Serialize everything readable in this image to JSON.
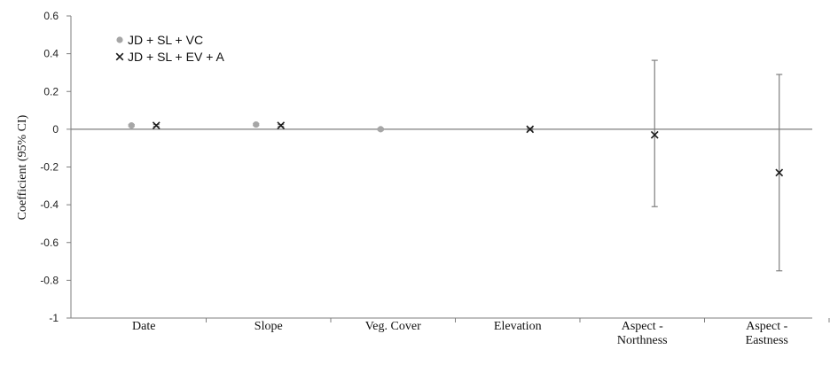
{
  "chart_data": {
    "type": "scatter",
    "ylabel": "Coefficient (95% CI)",
    "xlabel": "",
    "ylim": [
      -1,
      0.6
    ],
    "yticks": [
      0.6,
      0.4,
      0.2,
      0,
      -0.2,
      -0.4,
      -0.6,
      -0.8,
      -1
    ],
    "ytick_labels": [
      "0.6",
      "0.4",
      "0.2",
      "0",
      "-0.2",
      "-0.4",
      "-0.6",
      "-0.8",
      "-1"
    ],
    "categories": [
      [
        "Date"
      ],
      [
        "Slope"
      ],
      [
        "Veg. Cover"
      ],
      [
        "Elevation"
      ],
      [
        "Aspect -",
        "Northness"
      ],
      [
        "Aspect -",
        "Eastness"
      ]
    ],
    "legend_position": "top-left",
    "series": [
      {
        "name": "JD + SL + VC",
        "marker": "circle",
        "color": "#a6a6a6",
        "values": [
          0.02,
          0.025,
          0.0,
          null,
          null,
          null
        ],
        "ci_low": [
          0.015,
          0.02,
          -0.005,
          null,
          null,
          null
        ],
        "ci_high": [
          0.025,
          0.03,
          0.005,
          null,
          null,
          null
        ]
      },
      {
        "name": "JD + SL + EV + A",
        "marker": "x",
        "color": "#1a1a1a",
        "values": [
          0.02,
          0.02,
          null,
          0.0,
          -0.03,
          -0.23
        ],
        "ci_low": [
          0.015,
          0.015,
          null,
          -0.005,
          -0.41,
          -0.75
        ],
        "ci_high": [
          0.025,
          0.025,
          null,
          0.005,
          0.365,
          0.29
        ]
      }
    ]
  }
}
